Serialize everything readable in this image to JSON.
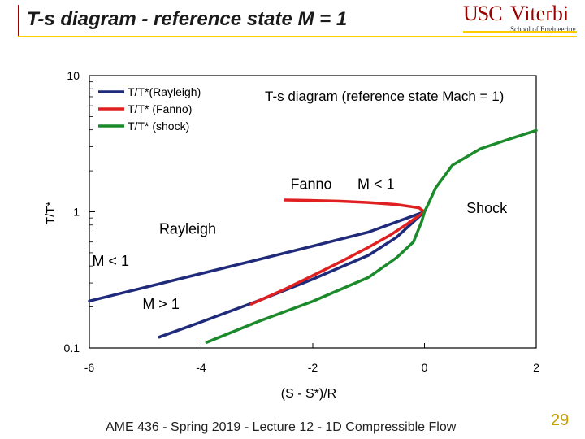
{
  "slide": {
    "title": "T-s diagram - reference state M = 1",
    "footer": "AME 436 - Spring 2019 - Lecture 12 - 1D Compressible Flow",
    "page_number": "29"
  },
  "logo": {
    "usc": "USC",
    "viterbi": "Viterbi",
    "sub": "School of Engineering"
  },
  "chart_data": {
    "type": "line",
    "title": "T-s diagram (reference state Mach = 1)",
    "xlabel": "(S - S*)/R",
    "ylabel": "T/T*",
    "xlim": [
      -6,
      2
    ],
    "ylim": [
      0.1,
      10
    ],
    "yscale": "log",
    "x_ticks": [
      "-6",
      "-4",
      "-2",
      "0",
      "2"
    ],
    "y_ticks": [
      "10",
      "1",
      "0.1"
    ],
    "legend_position": "top-left",
    "series": [
      {
        "name": "T/T*(Rayleigh)",
        "color": "#1f2a7a",
        "points": [
          [
            -6,
            0.221
          ],
          [
            -5,
            0.279
          ],
          [
            -4,
            0.352
          ],
          [
            -3,
            0.443
          ],
          [
            -2,
            0.56
          ],
          [
            -1,
            0.71
          ],
          [
            0,
            1.0
          ],
          [
            -0.5,
            0.65
          ],
          [
            -1,
            0.48
          ],
          [
            -2,
            0.32
          ],
          [
            -3,
            0.22
          ],
          [
            -4,
            0.155
          ],
          [
            -4.75,
            0.12
          ]
        ]
      },
      {
        "name": "T/T* (Fanno)",
        "color": "#e02020",
        "points": [
          [
            -2.5,
            1.22
          ],
          [
            -2,
            1.21
          ],
          [
            -1.5,
            1.195
          ],
          [
            -1,
            1.17
          ],
          [
            -0.5,
            1.13
          ],
          [
            -0.1,
            1.07
          ],
          [
            0,
            1.0
          ],
          [
            -0.3,
            0.82
          ],
          [
            -0.6,
            0.68
          ],
          [
            -1,
            0.55
          ],
          [
            -1.5,
            0.43
          ],
          [
            -2,
            0.34
          ],
          [
            -2.5,
            0.27
          ],
          [
            -3.1,
            0.21
          ]
        ]
      },
      {
        "name": "T/T* (shock)",
        "color": "#1a8a2a",
        "points": [
          [
            2,
            3.96
          ],
          [
            1.5,
            3.4
          ],
          [
            1,
            2.9
          ],
          [
            0.5,
            2.2
          ],
          [
            0.2,
            1.5
          ],
          [
            0.05,
            1.1
          ],
          [
            0,
            1.0
          ],
          [
            -0.05,
            0.85
          ],
          [
            -0.2,
            0.6
          ],
          [
            -0.5,
            0.46
          ],
          [
            -1,
            0.33
          ],
          [
            -2,
            0.22
          ],
          [
            -3,
            0.155
          ],
          [
            -3.9,
            0.11
          ]
        ]
      }
    ],
    "annotations": [
      {
        "text": "Fanno",
        "x": -2.4,
        "y": 1.47
      },
      {
        "text": "M < 1",
        "x": -1.2,
        "y": 1.47
      },
      {
        "text": "Shock",
        "x": 0.75,
        "y": 0.98
      },
      {
        "text": "Rayleigh",
        "x": -4.75,
        "y": 0.69
      },
      {
        "text": "M < 1",
        "x": -5.95,
        "y": 0.4
      },
      {
        "text": "M > 1",
        "x": -5.05,
        "y": 0.193
      }
    ]
  }
}
